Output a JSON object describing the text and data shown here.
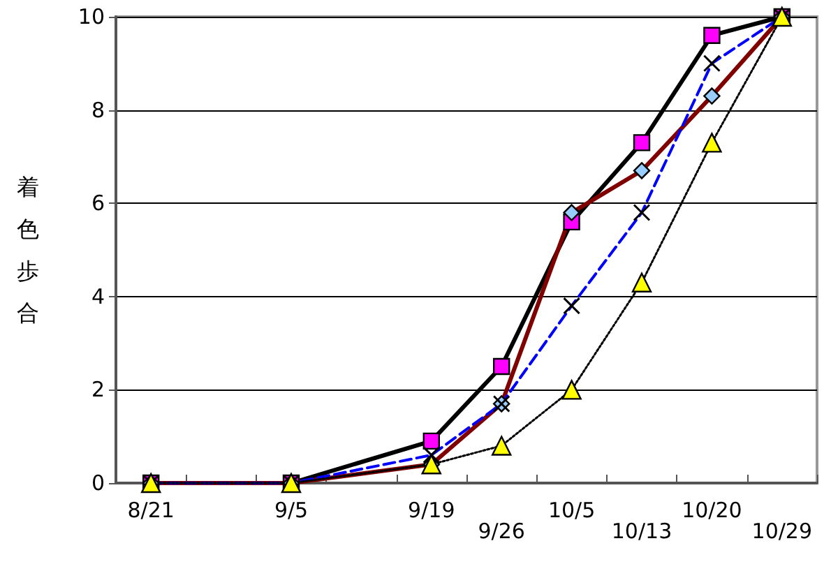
{
  "chart_data": {
    "type": "line",
    "ylabel": "着色歩合",
    "categories": [
      "8/21",
      null,
      "9/5",
      null,
      "9/19",
      "9/26",
      "10/5",
      "10/13",
      "10/20",
      "10/29"
    ],
    "series": [
      {
        "color": "#000000",
        "marker": "square",
        "colors": [
          "#ff00ff",
          null,
          "#ff00ff",
          null,
          "#ff00ff",
          "#ff00ff",
          "#ff00ff",
          "#ff00ff",
          "#ff00ff",
          "#ff00ff"
        ],
        "line_style": "solid",
        "values": [
          0,
          null,
          0,
          null,
          0.9,
          2.5,
          5.6,
          7.3,
          9.6,
          10
        ]
      },
      {
        "color": "#800000",
        "marker": "diamond",
        "colors": [
          "#99ccff",
          null,
          "#99ccff",
          null,
          "#99ccff",
          "#99ccff",
          "#99ccff",
          "#99ccff",
          "#99ccff",
          "#99ccff"
        ],
        "line_style": "solid",
        "values": [
          0,
          null,
          0,
          null,
          0.4,
          1.7,
          5.8,
          6.7,
          8.3,
          10
        ]
      },
      {
        "color": "#0000ff",
        "marker": "cross",
        "colors": [
          "#000000",
          null,
          "#000000",
          null,
          "#000000",
          "#000000",
          "#000000",
          "#000000",
          "#000000",
          "#000000"
        ],
        "line_style": "dashed",
        "values": [
          0,
          null,
          0,
          null,
          0.6,
          1.7,
          3.8,
          5.8,
          9.0,
          10
        ]
      },
      {
        "color": "#000000",
        "marker": "triangle",
        "colors": [
          "#ffff00",
          null,
          "#ffff00",
          null,
          "#ffff00",
          "#ffff00",
          "#ffff00",
          "#ffff00",
          "#ffff00",
          "#ffff00"
        ],
        "line_style": "dotted",
        "values": [
          0,
          null,
          0,
          null,
          0.4,
          0.8,
          2.0,
          4.3,
          7.3,
          10
        ]
      }
    ],
    "ylim": [
      0,
      10
    ],
    "yticks": [
      0,
      2,
      4,
      6,
      8,
      10
    ],
    "grid": "y"
  }
}
